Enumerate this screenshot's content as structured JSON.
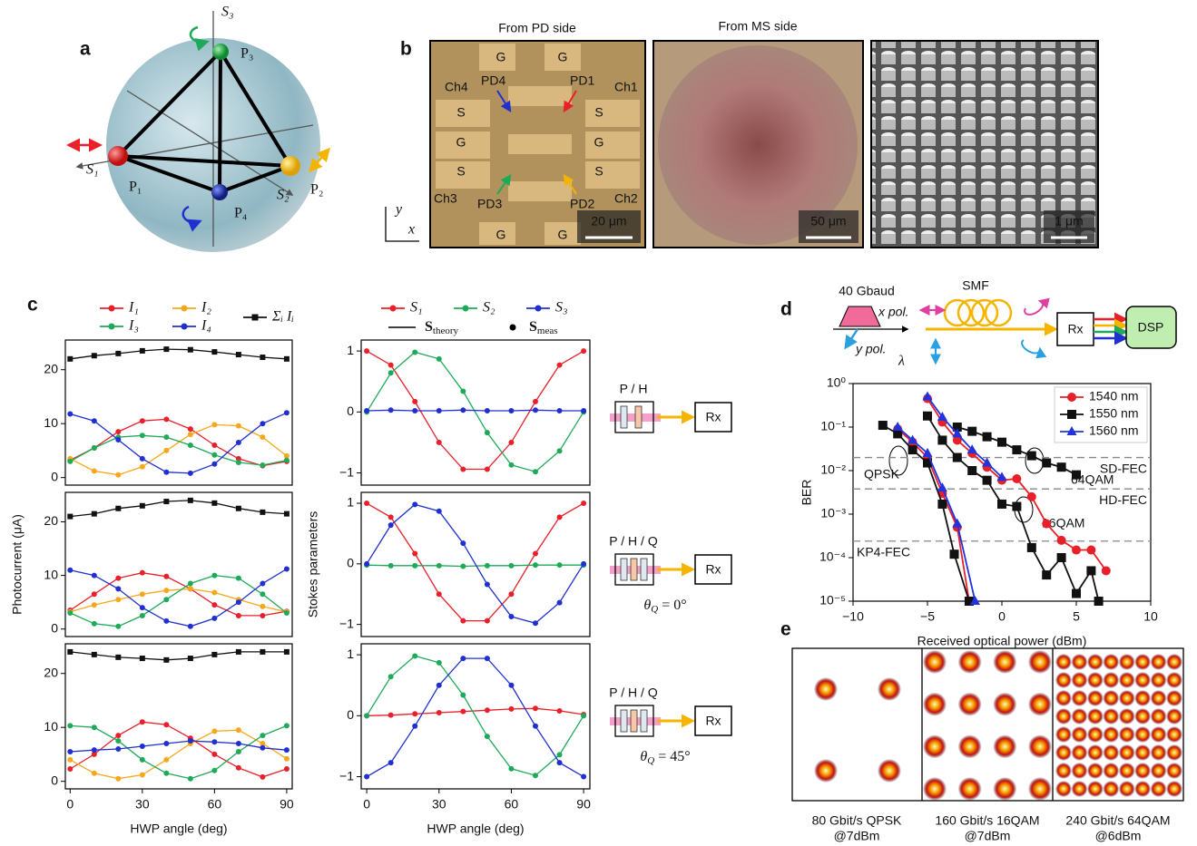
{
  "panels": {
    "a": {
      "label": "a",
      "axes": [
        "S₁",
        "S₂",
        "S₃"
      ],
      "points": [
        "P₁",
        "P₂",
        "P₃",
        "P₄"
      ]
    },
    "b": {
      "label": "b",
      "views": [
        "From PD side",
        "From MS side"
      ],
      "pads": [
        "G",
        "G",
        "S",
        "S",
        "G",
        "G",
        "S",
        "S",
        "G",
        "G"
      ],
      "channels": [
        "Ch4",
        "Ch1",
        "Ch3",
        "Ch2"
      ],
      "photodiodes": [
        "PD4",
        "PD1",
        "PD3",
        "PD2"
      ],
      "scale_bars": [
        "20 μm",
        "50 μm",
        "1 μm"
      ],
      "axes": [
        "y",
        "x"
      ]
    },
    "c": {
      "label": "c"
    },
    "d": {
      "label": "d",
      "signal": "40 Gbaud",
      "pols": [
        "x pol.",
        "y pol."
      ],
      "wavelength": "λ",
      "fiber": "SMF",
      "receiver": "Rx",
      "processor": "DSP"
    },
    "e": {
      "label": "e",
      "captions": [
        [
          "80 Gbit/s QPSK",
          "@7dBm"
        ],
        [
          "160 Gbit/s 16QAM",
          "@7dBm"
        ],
        [
          "240 Gbit/s 64QAM",
          "@6dBm"
        ]
      ]
    }
  },
  "chart_data": [
    {
      "type": "line",
      "x": [
        0,
        10,
        20,
        30,
        40,
        50,
        60,
        70,
        80,
        90
      ],
      "xlim": [
        -2,
        92.3
      ],
      "ylim": [
        -1.4,
        25.5
      ],
      "yticks": [
        0,
        10,
        20
      ],
      "legend": "above",
      "series": [
        {
          "name": "I₁",
          "color": "#e8202a",
          "values": [
            3.2,
            5.5,
            8.5,
            10.5,
            10.8,
            9,
            6,
            3.5,
            2.2,
            3
          ]
        },
        {
          "name": "I₂",
          "color": "#f6a81d",
          "values": [
            3.5,
            1.2,
            0.5,
            2,
            5,
            8,
            9.8,
            9.6,
            7.5,
            4
          ]
        },
        {
          "name": "I₃",
          "color": "#1faa5a",
          "values": [
            3,
            5.5,
            7.5,
            7.8,
            7.5,
            6,
            4.2,
            2.8,
            2.3,
            3.2
          ]
        },
        {
          "name": "I₄",
          "color": "#2030d0",
          "values": [
            11.8,
            10.5,
            7,
            3.5,
            1,
            0.8,
            2.5,
            6.5,
            10,
            12
          ]
        },
        {
          "name": "Σᵢ Iᵢ",
          "color": "#111111",
          "marker": "square",
          "values": [
            22,
            22.6,
            23,
            23.5,
            23.8,
            23.7,
            23.3,
            22.8,
            22.3,
            22
          ]
        }
      ]
    },
    {
      "type": "line",
      "x": [
        0,
        10,
        20,
        30,
        40,
        50,
        60,
        70,
        80,
        90
      ],
      "xlim": [
        -2,
        92.3
      ],
      "ylim": [
        -1.4,
        25.5
      ],
      "yticks": [
        0,
        10,
        20
      ],
      "ylabel": "Photocurrent (μA)",
      "series": [
        {
          "color": "#e8202a",
          "values": [
            3.5,
            6.5,
            9.5,
            10.5,
            9.8,
            7.5,
            4.5,
            2.5,
            2.5,
            3.3
          ]
        },
        {
          "color": "#f6a81d",
          "values": [
            3.2,
            4.5,
            5.5,
            6.5,
            7.2,
            7.5,
            6.8,
            5.5,
            4.2,
            3.2
          ]
        },
        {
          "color": "#1faa5a",
          "values": [
            3,
            1,
            0.5,
            2.5,
            5.5,
            8.5,
            10,
            9.5,
            6.5,
            3
          ]
        },
        {
          "color": "#2030d0",
          "values": [
            11,
            10,
            7.5,
            4,
            1.5,
            0.5,
            2,
            5,
            8.5,
            11.2
          ]
        },
        {
          "color": "#111111",
          "marker": "square",
          "values": [
            21,
            21.5,
            22.5,
            23,
            23.8,
            24,
            23.5,
            22.5,
            21.8,
            21.5
          ]
        }
      ]
    },
    {
      "type": "line",
      "x": [
        0,
        10,
        20,
        30,
        40,
        50,
        60,
        70,
        80,
        90
      ],
      "xlim": [
        -2,
        92.3
      ],
      "ylim": [
        -1.4,
        25.5
      ],
      "yticks": [
        0,
        10,
        20
      ],
      "xticks": [
        0,
        30,
        60,
        90
      ],
      "xlabel": "HWP angle (deg)",
      "series": [
        {
          "color": "#e8202a",
          "values": [
            2.3,
            5,
            8.5,
            11,
            10.5,
            8,
            5,
            2.5,
            0.8,
            2.3
          ]
        },
        {
          "color": "#f6a81d",
          "values": [
            4,
            1.5,
            0.5,
            1.2,
            4,
            7,
            9.3,
            9.5,
            7,
            4.2
          ]
        },
        {
          "color": "#1faa5a",
          "values": [
            10.3,
            10,
            7.5,
            4,
            1.5,
            0.5,
            2,
            5.5,
            8.5,
            10.3
          ]
        },
        {
          "color": "#2030d0",
          "values": [
            5.5,
            5.8,
            6,
            6.5,
            7,
            7.5,
            7.3,
            7,
            6.2,
            5.8
          ]
        },
        {
          "color": "#111111",
          "marker": "square",
          "values": [
            24,
            23.5,
            23,
            22.8,
            22.5,
            22.8,
            23.5,
            24,
            24,
            24
          ]
        }
      ]
    },
    {
      "type": "line",
      "x": [
        0,
        10,
        20,
        30,
        40,
        50,
        60,
        70,
        80,
        90
      ],
      "xlim": [
        -2.3,
        92.6
      ],
      "ylim": [
        -1.2,
        1.18
      ],
      "yticks": [
        {
          "value": -1,
          "label": "−1"
        },
        0,
        1
      ],
      "legend": "above",
      "legend_notes": [
        {
          "symbol": "S",
          "sub": "theory"
        },
        {
          "symbol": "S",
          "sub": "meas"
        }
      ],
      "inset": {
        "label": "P / H",
        "receiver": "Rx"
      },
      "series": [
        {
          "name": "S₁",
          "color": "#e8202a",
          "values": [
            1,
            0.77,
            0.17,
            -0.5,
            -0.94,
            -0.94,
            -0.5,
            0.17,
            0.77,
            1
          ]
        },
        {
          "name": "S₂",
          "color": "#1faa5a",
          "values": [
            0,
            0.64,
            0.98,
            0.87,
            0.34,
            -0.34,
            -0.87,
            -0.98,
            -0.64,
            0
          ]
        },
        {
          "name": "S₃",
          "color": "#2030d0",
          "values": [
            0.02,
            0.03,
            0.02,
            0.02,
            0.03,
            0.02,
            0.02,
            0.03,
            0.02,
            0.02
          ]
        }
      ]
    },
    {
      "type": "line",
      "x": [
        0,
        10,
        20,
        30,
        40,
        50,
        60,
        70,
        80,
        90
      ],
      "xlim": [
        -2.3,
        92.6
      ],
      "ylim": [
        -1.2,
        1.18
      ],
      "yticks": [
        {
          "value": -1,
          "label": "−1"
        },
        0,
        1
      ],
      "ylabel": "Stokes parameters",
      "inset": {
        "label": "P / H / Q",
        "receiver": "Rx",
        "note": {
          "symbol": "θ",
          "sub": "Q",
          "text": " = 0°"
        }
      },
      "series": [
        {
          "color": "#e8202a",
          "values": [
            1,
            0.77,
            0.17,
            -0.5,
            -0.94,
            -0.94,
            -0.5,
            0.17,
            0.77,
            1
          ]
        },
        {
          "color": "#1faa5a",
          "values": [
            -0.02,
            -0.03,
            -0.03,
            -0.03,
            -0.04,
            -0.03,
            -0.03,
            -0.02,
            -0.02,
            -0.02
          ]
        },
        {
          "color": "#2030d0",
          "values": [
            0,
            0.64,
            0.98,
            0.87,
            0.34,
            -0.34,
            -0.87,
            -0.98,
            -0.64,
            0
          ]
        }
      ]
    },
    {
      "type": "line",
      "x": [
        0,
        10,
        20,
        30,
        40,
        50,
        60,
        70,
        80,
        90
      ],
      "xlim": [
        -2.3,
        92.6
      ],
      "ylim": [
        -1.2,
        1.18
      ],
      "yticks": [
        {
          "value": -1,
          "label": "−1"
        },
        0,
        1
      ],
      "xticks": [
        0,
        30,
        60,
        90
      ],
      "xlabel": "HWP angle (deg)",
      "inset": {
        "label": "P / H / Q",
        "receiver": "Rx",
        "note": {
          "symbol": "θ",
          "sub": "Q",
          "text": " = 45°"
        }
      },
      "series": [
        {
          "color": "#e8202a",
          "values": [
            0,
            0.01,
            0.03,
            0.05,
            0.07,
            0.09,
            0.11,
            0.12,
            0.08,
            0.02
          ]
        },
        {
          "color": "#1faa5a",
          "values": [
            0,
            0.64,
            0.98,
            0.87,
            0.34,
            -0.34,
            -0.87,
            -0.98,
            -0.64,
            0
          ]
        },
        {
          "color": "#2030d0",
          "values": [
            -1,
            -0.77,
            -0.17,
            0.5,
            0.94,
            0.94,
            0.5,
            -0.17,
            -0.77,
            -1
          ]
        }
      ]
    },
    {
      "type": "line",
      "yscale": "log",
      "xlim": [
        -10,
        10
      ],
      "ylim": [
        1e-05,
        1
      ],
      "xticks": [
        {
          "value": -10,
          "label": "−10"
        },
        {
          "value": -5,
          "label": "−5"
        },
        0,
        5,
        10
      ],
      "yticks": [
        {
          "value": 1e-05,
          "label": "10⁻⁵"
        },
        {
          "value": 0.0001,
          "label": "10⁻⁴"
        },
        {
          "value": 0.001,
          "label": "10⁻³"
        },
        {
          "value": 0.01,
          "label": "10⁻²"
        },
        {
          "value": 0.1,
          "label": "10⁻¹"
        },
        {
          "value": 1,
          "label": "10⁰"
        }
      ],
      "xlabel": "Received optical power (dBm)",
      "ylabel": "BER",
      "legend": "upper right",
      "thresholds": [
        {
          "name": "SD-FEC",
          "value": 0.02
        },
        {
          "name": "HD-FEC",
          "value": 0.0038
        },
        {
          "name": "KP4-FEC",
          "value": 0.00024
        }
      ],
      "annotations": [
        "QPSK",
        "16QAM",
        "64QAM"
      ],
      "series": [
        {
          "name": "1540 nm",
          "color": "#e8202a",
          "marker": "circle",
          "x": [
            -7,
            -6,
            -5,
            -4,
            -3,
            -2.2,
            null,
            -5,
            -4,
            -3,
            -2,
            -1,
            0,
            1,
            2,
            3,
            4,
            5,
            6,
            7
          ],
          "values": [
            0.09,
            0.045,
            0.02,
            0.003,
            0.0005,
            1e-05,
            null,
            0.45,
            0.13,
            0.05,
            0.025,
            0.012,
            0.006,
            0.0065,
            0.0025,
            0.0006,
            0.00025,
            0.00015,
            0.00015,
            5e-05
          ]
        },
        {
          "name": "1550 nm",
          "color": "#111111",
          "marker": "square",
          "x": [
            -8,
            -7,
            -6,
            -5,
            -4,
            -3.2,
            -2.2,
            null,
            -5,
            -4,
            -3,
            -2,
            -1,
            0,
            1,
            2,
            3,
            4,
            5,
            6,
            6.5,
            null,
            -3,
            -2,
            -1,
            0,
            1,
            2,
            3,
            4,
            5
          ],
          "values": [
            0.11,
            0.07,
            0.03,
            0.015,
            0.0017,
            0.00012,
            1e-05,
            null,
            0.18,
            0.05,
            0.02,
            0.01,
            0.006,
            0.0017,
            0.0015,
            0.00017,
            4e-05,
            0.0001,
            1.5e-05,
            5e-05,
            1e-05,
            null,
            0.1,
            0.08,
            0.06,
            0.045,
            0.03,
            0.022,
            0.015,
            0.012,
            0.008
          ]
        },
        {
          "name": "1560 nm",
          "color": "#2233dd",
          "marker": "triangle",
          "x": [
            -7,
            -6,
            -5,
            -4,
            -3,
            -1.8,
            null,
            -5,
            -4,
            -3,
            -2,
            -1,
            0
          ],
          "values": [
            0.1,
            0.05,
            0.025,
            0.004,
            0.0006,
            1e-05,
            null,
            0.5,
            0.17,
            0.07,
            0.03,
            0.015,
            0.007
          ]
        }
      ]
    }
  ]
}
